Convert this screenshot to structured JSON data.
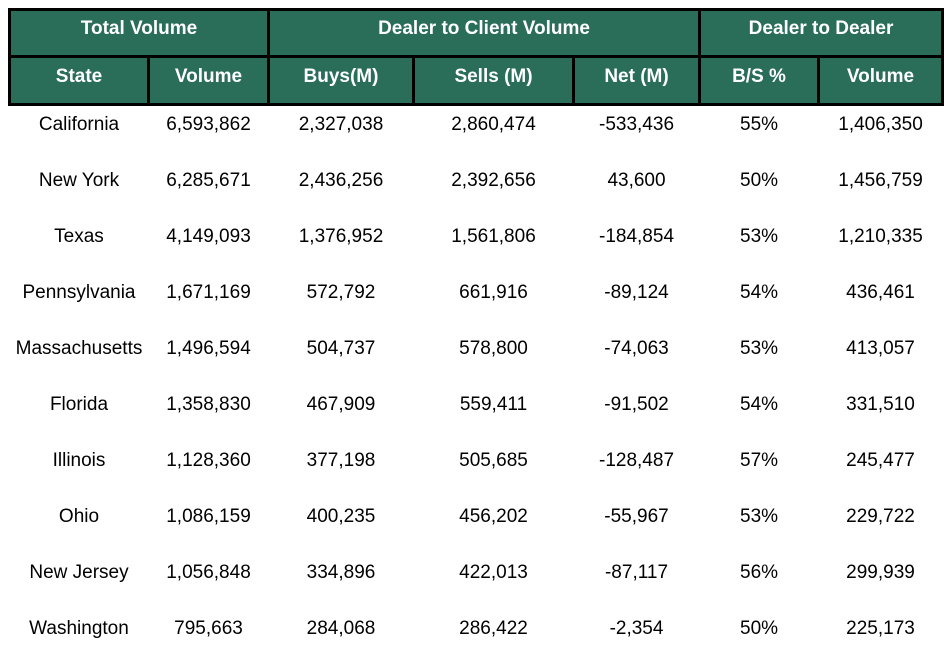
{
  "chart_data": {
    "type": "table",
    "column_groups": [
      {
        "label": "Total Volume",
        "span": 2
      },
      {
        "label": "Dealer to Client Volume",
        "span": 3
      },
      {
        "label": "Dealer to Dealer",
        "span": 2
      }
    ],
    "columns": [
      "State",
      "Volume",
      "Buys(M)",
      "Sells (M)",
      "Net (M)",
      "B/S %",
      "Volume"
    ],
    "rows": [
      [
        "California",
        "6,593,862",
        "2,327,038",
        "2,860,474",
        "-533,436",
        "55%",
        "1,406,350"
      ],
      [
        "New York",
        "6,285,671",
        "2,436,256",
        "2,392,656",
        "43,600",
        "50%",
        "1,456,759"
      ],
      [
        "Texas",
        "4,149,093",
        "1,376,952",
        "1,561,806",
        "-184,854",
        "53%",
        "1,210,335"
      ],
      [
        "Pennsylvania",
        "1,671,169",
        "572,792",
        "661,916",
        "-89,124",
        "54%",
        "436,461"
      ],
      [
        "Massachusetts",
        "1,496,594",
        "504,737",
        "578,800",
        "-74,063",
        "53%",
        "413,057"
      ],
      [
        "Florida",
        "1,358,830",
        "467,909",
        "559,411",
        "-91,502",
        "54%",
        "331,510"
      ],
      [
        "Illinois",
        "1,128,360",
        "377,198",
        "505,685",
        "-128,487",
        "57%",
        "245,477"
      ],
      [
        "Ohio",
        "1,086,159",
        "400,235",
        "456,202",
        "-55,967",
        "53%",
        "229,722"
      ],
      [
        "New Jersey",
        "1,056,848",
        "334,896",
        "422,013",
        "-87,117",
        "56%",
        "299,939"
      ],
      [
        "Washington",
        "795,663",
        "284,068",
        "286,422",
        "-2,354",
        "50%",
        "225,173"
      ]
    ],
    "layout": {
      "grid": "off",
      "header_borders": "black",
      "body_borders": "none"
    }
  },
  "colors": {
    "header_bg": "#2A6D59",
    "header_text": "#FFFFFF",
    "border": "#000000",
    "body_text": "#000000",
    "body_bg": "#FFFFFF"
  }
}
